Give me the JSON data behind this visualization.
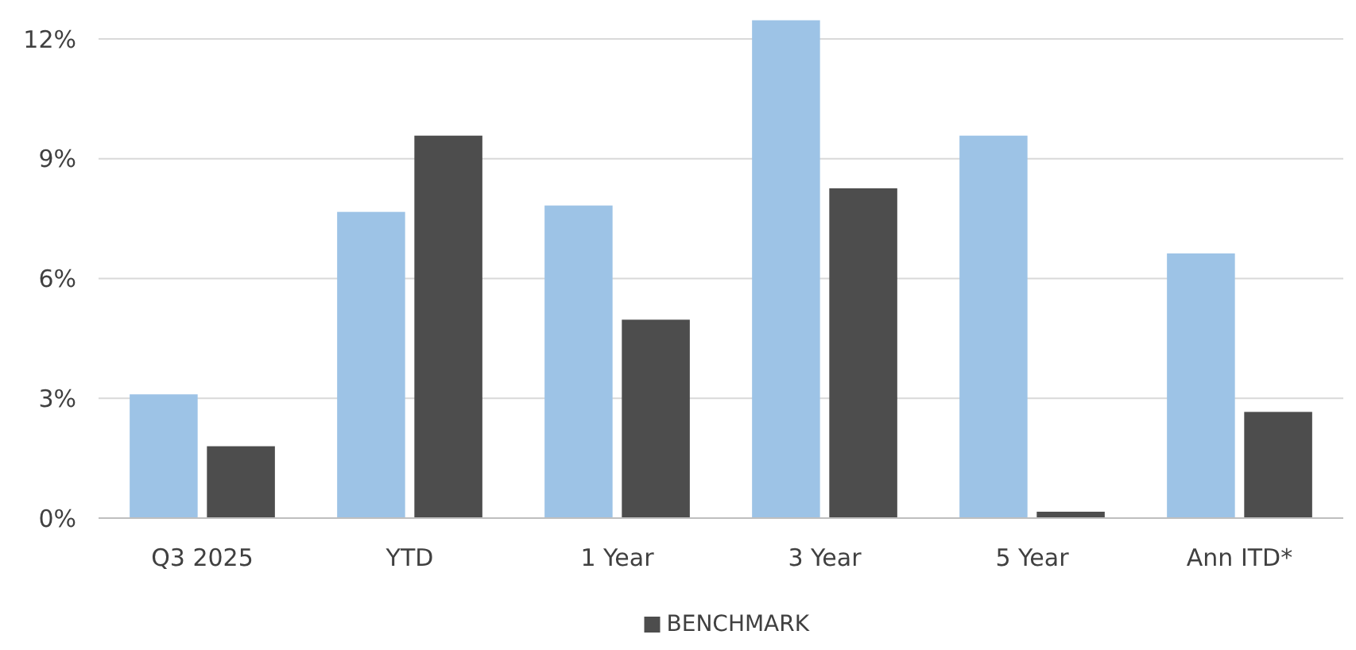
{
  "chart_data": {
    "type": "bar",
    "categories": [
      "Q3 2025",
      "YTD",
      "1 Year",
      "3 Year",
      "5 Year",
      "Ann ITD*"
    ],
    "series": [
      {
        "color": "#9dc3e6",
        "values": [
          3.1,
          7.67,
          7.83,
          12.47,
          9.58,
          6.63
        ]
      },
      {
        "name": "BENCHMARK",
        "color": "#4d4d4d",
        "values": [
          1.8,
          9.58,
          4.97,
          8.26,
          0.16,
          2.66
        ]
      }
    ],
    "ylim": [
      0,
      12.5
    ],
    "yticks": [
      {
        "value": 0,
        "label": "0%"
      },
      {
        "value": 3,
        "label": "3%"
      },
      {
        "value": 6,
        "label": "6%"
      },
      {
        "value": 9,
        "label": "9%"
      },
      {
        "value": 12,
        "label": "12%"
      }
    ],
    "grid": "y",
    "legend": "bottom"
  }
}
